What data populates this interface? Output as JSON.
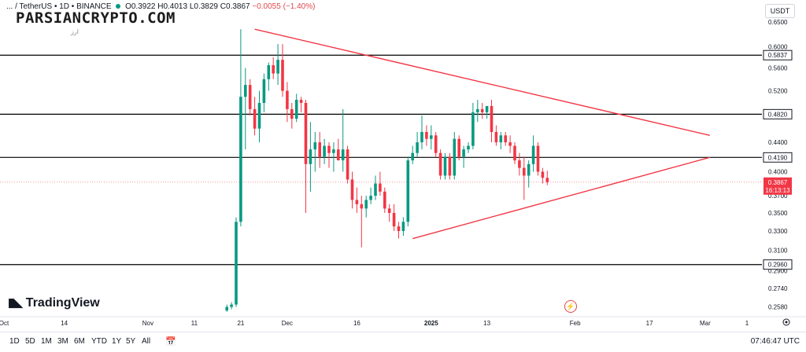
{
  "header": {
    "symbol": "... / TetherUS • 1D • BINANCE",
    "open": "O0.3922",
    "high": "H0.4013",
    "low": "L0.3829",
    "close": "C0.3867",
    "change": "−0.0055 (−1.40%)"
  },
  "watermark": {
    "text": "PARSIANCRYPTO.COM",
    "sub": "ارز"
  },
  "currency_button": "USDT",
  "branding": "TradingView",
  "timeframes": [
    "1D",
    "5D",
    "1M",
    "3M",
    "6M",
    "YTD",
    "1Y",
    "5Y",
    "All"
  ],
  "clock": "07:46:47 UTC",
  "colors": {
    "up": "#089981",
    "down": "#f23645",
    "trend": "#f23645",
    "level": "#000000"
  },
  "chart_data": {
    "type": "candlestick",
    "scale": "log",
    "ylim": [
      0.25,
      0.66
    ],
    "y_ticks": [
      "0.6500",
      "0.6000",
      "0.5600",
      "0.5200",
      "0.4400",
      "0.4000",
      "0.3700",
      "0.3500",
      "0.3300",
      "0.3100",
      "0.2900",
      "0.2740",
      "0.2580"
    ],
    "x_ticks": [
      "Oct",
      "14",
      "Nov",
      "11",
      "21",
      "Dec",
      "16",
      "2025",
      "13",
      "Feb",
      "17",
      "Mar",
      "1"
    ],
    "levels": [
      {
        "label": "0.5837",
        "value": 0.5837
      },
      {
        "label": "0.4820",
        "value": 0.482
      },
      {
        "label": "0.4190",
        "value": 0.419
      },
      {
        "label": "0.2960",
        "value": 0.296
      }
    ],
    "last_price": {
      "label": "0.3867",
      "countdown": "16:13:13",
      "value": 0.3867
    },
    "trendlines": [
      {
        "name": "upper-trendline",
        "from": {
          "day": 54,
          "price": 0.635
        },
        "to": {
          "day": 152,
          "price": 0.45
        }
      },
      {
        "name": "lower-trendline",
        "from": {
          "day": 88,
          "price": 0.322
        },
        "to": {
          "day": 152,
          "price": 0.419
        }
      }
    ],
    "candles": [
      {
        "o": 0.255,
        "h": 0.26,
        "l": 0.254,
        "c": 0.258
      },
      {
        "o": 0.258,
        "h": 0.262,
        "l": 0.256,
        "c": 0.26
      },
      {
        "o": 0.26,
        "h": 0.345,
        "l": 0.258,
        "c": 0.34
      },
      {
        "o": 0.34,
        "h": 0.635,
        "l": 0.335,
        "c": 0.51
      },
      {
        "o": 0.51,
        "h": 0.56,
        "l": 0.43,
        "c": 0.53
      },
      {
        "o": 0.53,
        "h": 0.54,
        "l": 0.48,
        "c": 0.49
      },
      {
        "o": 0.49,
        "h": 0.51,
        "l": 0.45,
        "c": 0.46
      },
      {
        "o": 0.46,
        "h": 0.52,
        "l": 0.44,
        "c": 0.5
      },
      {
        "o": 0.5,
        "h": 0.55,
        "l": 0.485,
        "c": 0.54
      },
      {
        "o": 0.54,
        "h": 0.57,
        "l": 0.52,
        "c": 0.565
      },
      {
        "o": 0.565,
        "h": 0.58,
        "l": 0.54,
        "c": 0.55
      },
      {
        "o": 0.55,
        "h": 0.605,
        "l": 0.53,
        "c": 0.575
      },
      {
        "o": 0.575,
        "h": 0.605,
        "l": 0.51,
        "c": 0.52
      },
      {
        "o": 0.52,
        "h": 0.535,
        "l": 0.47,
        "c": 0.49
      },
      {
        "o": 0.49,
        "h": 0.5,
        "l": 0.46,
        "c": 0.475
      },
      {
        "o": 0.475,
        "h": 0.515,
        "l": 0.47,
        "c": 0.505
      },
      {
        "o": 0.505,
        "h": 0.51,
        "l": 0.485,
        "c": 0.5
      },
      {
        "o": 0.5,
        "h": 0.505,
        "l": 0.35,
        "c": 0.41
      },
      {
        "o": 0.41,
        "h": 0.47,
        "l": 0.375,
        "c": 0.43
      },
      {
        "o": 0.43,
        "h": 0.455,
        "l": 0.4,
        "c": 0.44
      },
      {
        "o": 0.44,
        "h": 0.455,
        "l": 0.405,
        "c": 0.42
      },
      {
        "o": 0.42,
        "h": 0.445,
        "l": 0.41,
        "c": 0.435
      },
      {
        "o": 0.435,
        "h": 0.44,
        "l": 0.405,
        "c": 0.425
      },
      {
        "o": 0.425,
        "h": 0.44,
        "l": 0.4,
        "c": 0.43
      },
      {
        "o": 0.43,
        "h": 0.445,
        "l": 0.415,
        "c": 0.415
      },
      {
        "o": 0.415,
        "h": 0.49,
        "l": 0.4,
        "c": 0.43
      },
      {
        "o": 0.43,
        "h": 0.435,
        "l": 0.385,
        "c": 0.39
      },
      {
        "o": 0.39,
        "h": 0.4,
        "l": 0.355,
        "c": 0.365
      },
      {
        "o": 0.365,
        "h": 0.38,
        "l": 0.35,
        "c": 0.36
      },
      {
        "o": 0.36,
        "h": 0.37,
        "l": 0.313,
        "c": 0.355
      },
      {
        "o": 0.355,
        "h": 0.37,
        "l": 0.345,
        "c": 0.365
      },
      {
        "o": 0.365,
        "h": 0.38,
        "l": 0.36,
        "c": 0.37
      },
      {
        "o": 0.37,
        "h": 0.395,
        "l": 0.365,
        "c": 0.385
      },
      {
        "o": 0.385,
        "h": 0.4,
        "l": 0.37,
        "c": 0.375
      },
      {
        "o": 0.375,
        "h": 0.38,
        "l": 0.35,
        "c": 0.355
      },
      {
        "o": 0.355,
        "h": 0.36,
        "l": 0.34,
        "c": 0.35
      },
      {
        "o": 0.35,
        "h": 0.36,
        "l": 0.33,
        "c": 0.335
      },
      {
        "o": 0.335,
        "h": 0.34,
        "l": 0.322,
        "c": 0.33
      },
      {
        "o": 0.33,
        "h": 0.345,
        "l": 0.325,
        "c": 0.34
      },
      {
        "o": 0.34,
        "h": 0.42,
        "l": 0.335,
        "c": 0.415
      },
      {
        "o": 0.415,
        "h": 0.435,
        "l": 0.41,
        "c": 0.425
      },
      {
        "o": 0.425,
        "h": 0.455,
        "l": 0.42,
        "c": 0.44
      },
      {
        "o": 0.44,
        "h": 0.48,
        "l": 0.43,
        "c": 0.455
      },
      {
        "o": 0.455,
        "h": 0.465,
        "l": 0.435,
        "c": 0.445
      },
      {
        "o": 0.445,
        "h": 0.465,
        "l": 0.43,
        "c": 0.45
      },
      {
        "o": 0.45,
        "h": 0.455,
        "l": 0.42,
        "c": 0.425
      },
      {
        "o": 0.425,
        "h": 0.43,
        "l": 0.39,
        "c": 0.395
      },
      {
        "o": 0.395,
        "h": 0.425,
        "l": 0.39,
        "c": 0.42
      },
      {
        "o": 0.42,
        "h": 0.425,
        "l": 0.39,
        "c": 0.395
      },
      {
        "o": 0.395,
        "h": 0.455,
        "l": 0.39,
        "c": 0.445
      },
      {
        "o": 0.445,
        "h": 0.45,
        "l": 0.415,
        "c": 0.42
      },
      {
        "o": 0.42,
        "h": 0.435,
        "l": 0.405,
        "c": 0.43
      },
      {
        "o": 0.43,
        "h": 0.44,
        "l": 0.425,
        "c": 0.435
      },
      {
        "o": 0.435,
        "h": 0.5,
        "l": 0.43,
        "c": 0.485
      },
      {
        "o": 0.485,
        "h": 0.505,
        "l": 0.47,
        "c": 0.49
      },
      {
        "o": 0.49,
        "h": 0.5,
        "l": 0.475,
        "c": 0.485
      },
      {
        "o": 0.485,
        "h": 0.495,
        "l": 0.475,
        "c": 0.495
      },
      {
        "o": 0.495,
        "h": 0.505,
        "l": 0.44,
        "c": 0.455
      },
      {
        "o": 0.455,
        "h": 0.465,
        "l": 0.435,
        "c": 0.44
      },
      {
        "o": 0.44,
        "h": 0.455,
        "l": 0.43,
        "c": 0.45
      },
      {
        "o": 0.45,
        "h": 0.455,
        "l": 0.435,
        "c": 0.44
      },
      {
        "o": 0.44,
        "h": 0.45,
        "l": 0.425,
        "c": 0.435
      },
      {
        "o": 0.435,
        "h": 0.44,
        "l": 0.41,
        "c": 0.415
      },
      {
        "o": 0.415,
        "h": 0.425,
        "l": 0.395,
        "c": 0.405
      },
      {
        "o": 0.405,
        "h": 0.42,
        "l": 0.365,
        "c": 0.395
      },
      {
        "o": 0.395,
        "h": 0.415,
        "l": 0.38,
        "c": 0.41
      },
      {
        "o": 0.41,
        "h": 0.45,
        "l": 0.4,
        "c": 0.435
      },
      {
        "o": 0.435,
        "h": 0.44,
        "l": 0.395,
        "c": 0.4
      },
      {
        "o": 0.4,
        "h": 0.405,
        "l": 0.385,
        "c": 0.3922
      },
      {
        "o": 0.3922,
        "h": 0.4013,
        "l": 0.3829,
        "c": 0.3867
      }
    ]
  }
}
